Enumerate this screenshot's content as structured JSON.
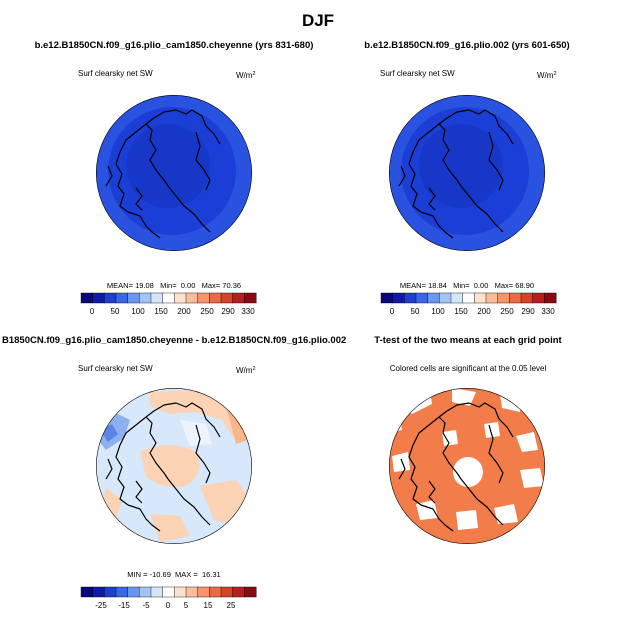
{
  "chart_data": {
    "type": "polar_map_panels",
    "title": "DJF",
    "colors": {
      "deep_blue": "#1b3fd6",
      "mid_blue": "#2a52e0",
      "pale_blue": "#d7e8fb",
      "pale_orange": "#fcd3b4",
      "orange": "#f27d4a",
      "land_outline": "#000000"
    },
    "panels": [
      {
        "title": "b.e12.B1850CN.f09_g16.plio_cam1850.cheyenne (yrs 831-680)",
        "variable": "Surf clearsky net SW",
        "units_base": "W/m",
        "units_exp": "2",
        "stats": {
          "mean_label": "MEAN=",
          "mean": "19.08",
          "min_label": "Min=",
          "min": "0.00",
          "max_label": "Max=",
          "max": "70.36"
        },
        "colorbar_ticks": [
          "0",
          "50",
          "100",
          "150",
          "200",
          "250",
          "290",
          "330"
        ]
      },
      {
        "title": "b.e12.B1850CN.f09_g16.plio.002 (yrs 601-650)",
        "variable": "Surf clearsky net SW",
        "units_base": "W/m",
        "units_exp": "2",
        "stats": {
          "mean_label": "MEAN=",
          "mean": "18.84",
          "min_label": "Min=",
          "min": "0.00",
          "max_label": "Max=",
          "max": "68.90"
        },
        "colorbar_ticks": [
          "0",
          "50",
          "100",
          "150",
          "200",
          "250",
          "290",
          "330"
        ]
      },
      {
        "title": "B1850CN.f09_g16.plio_cam1850.cheyenne - b.e12.B1850CN.f09_g16.plio.002",
        "variable": "Surf clearsky net SW",
        "units_base": "W/m",
        "units_exp": "2",
        "stats": {
          "min_label": "MIN =",
          "min": "-10.69",
          "max_label": "MAX =",
          "max": "16.31"
        },
        "colorbar_ticks": [
          "-25",
          "-15",
          "-5",
          "0",
          "5",
          "15",
          "25"
        ]
      },
      {
        "title": "T-test of the two means at each grid point",
        "variable": "Colored cells are significant at the 0.05 level"
      }
    ],
    "abs_colorbar_colors": [
      "#08087a",
      "#0e1aa8",
      "#1f3fd0",
      "#3a67e6",
      "#6a97ee",
      "#a3c4f5",
      "#d5e6fb",
      "#ffffff",
      "#fde2cf",
      "#fbbd9a",
      "#f6946b",
      "#ea6a44",
      "#d44228",
      "#b41e1c",
      "#8a0a12"
    ],
    "diff_colorbar_colors": [
      "#08087a",
      "#0e1aa8",
      "#1f3fd0",
      "#3a67e6",
      "#6a97ee",
      "#a3c4f5",
      "#d5e6fb",
      "#ffffff",
      "#fde2cf",
      "#fbbd9a",
      "#f6946b",
      "#ea6a44",
      "#d44228",
      "#b41e1c",
      "#8a0a12"
    ]
  }
}
